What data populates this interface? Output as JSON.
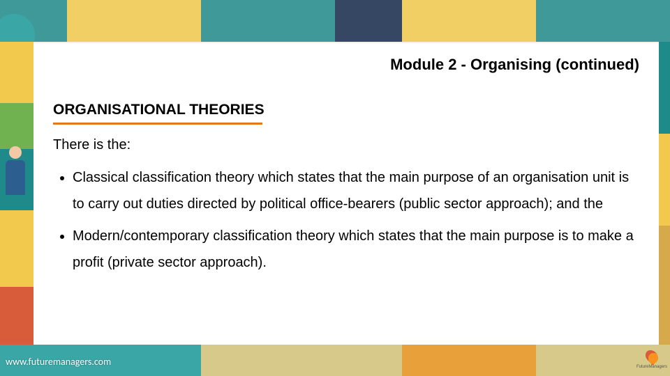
{
  "slide": {
    "module_title": "Module 2 - Organising (continued)",
    "section_heading": "ORGANISATIONAL THEORIES",
    "underline_color": "#e67817",
    "lead_text": "There is the:",
    "bullets": [
      "Classical classification theory which states that the main purpose of an organisation unit is to carry out duties directed by political office-bearers (public sector approach); and the",
      "Modern/contemporary classification theory which states that the main purpose is to make a profit (private sector approach)."
    ]
  },
  "footer": {
    "url": "www.futuremanagers.com",
    "logo_label": "FutureManagers"
  },
  "style": {
    "card_bg": "#ffffff",
    "title_fontsize": 22,
    "heading_fontsize": 21,
    "body_fontsize": 20,
    "line_height": 1.9,
    "text_color": "#000000",
    "footer_color": "#ffffff",
    "footer_fontsize": 14
  }
}
